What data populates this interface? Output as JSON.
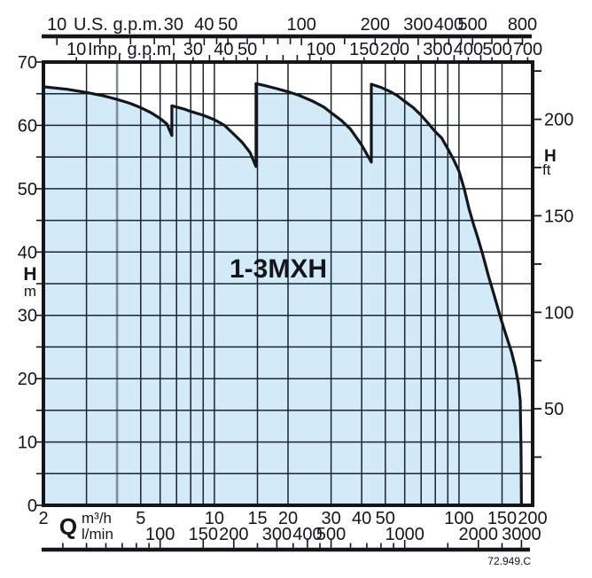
{
  "chart_data": {
    "type": "area",
    "title": "1-3MXH",
    "figure_code": "72.949.C",
    "x_axis": {
      "scale": "log",
      "label": "Q",
      "unit_primary": "m³/h",
      "unit_secondary": "l/min",
      "range_m3h": [
        2,
        200
      ],
      "ticks_m3h_labeled": [
        2,
        5,
        10,
        15,
        20,
        30,
        40,
        50,
        100,
        150,
        200
      ],
      "ticks_lmin_labeled": [
        100,
        150,
        200,
        300,
        400,
        500,
        1000,
        2000,
        3000
      ],
      "ticks_lmin_minor": [
        40,
        50,
        60,
        70,
        80,
        90,
        250,
        350,
        450,
        600,
        700,
        800,
        900,
        1500,
        2500
      ],
      "lmin_per_m3h": 16.6667
    },
    "x_top_us": {
      "label": "U.S. g.p.m.",
      "gpm_per_m3h": 4.40287,
      "ticks_labeled": [
        10,
        30,
        40,
        50,
        100,
        200,
        300,
        400,
        500,
        800
      ],
      "ticks_minor": [
        15,
        20,
        25,
        35,
        45,
        60,
        70,
        80,
        90,
        150,
        250,
        350,
        450,
        600,
        700
      ]
    },
    "x_top_imp": {
      "label": "Imp. g.p.m.",
      "gpm_per_m3h": 3.66615,
      "ticks_labeled": [
        10,
        30,
        40,
        50,
        100,
        150,
        200,
        300,
        400,
        500,
        700
      ],
      "ticks_minor": [
        15,
        20,
        25,
        35,
        45,
        60,
        70,
        80,
        90,
        250,
        350,
        450,
        600
      ]
    },
    "y_left": {
      "label": "H",
      "unit": "m",
      "range": [
        0,
        70
      ],
      "ticks_labeled": [
        0,
        10,
        20,
        30,
        40,
        50,
        60,
        70
      ],
      "minor_step": 5
    },
    "y_right": {
      "label": "H",
      "unit": "ft",
      "ticks_labeled": [
        50,
        100,
        150,
        200
      ],
      "tick_step_ft": 25,
      "max_tick_ft": 225,
      "ft_per_m": 3.28084
    },
    "grid": {
      "h_step_m": 5,
      "v_lines_m3h": [
        3,
        4,
        5,
        6,
        7,
        8,
        9,
        10,
        15,
        20,
        30,
        40,
        50,
        60,
        70,
        80,
        90,
        100,
        150
      ],
      "gray_v_line_m3h": 4
    },
    "envelope_QH": [
      [
        2,
        66.1
      ],
      [
        2.5,
        65.7
      ],
      [
        3,
        65.2
      ],
      [
        3.5,
        64.7
      ],
      [
        4,
        64.1
      ],
      [
        4.5,
        63.5
      ],
      [
        5,
        62.8
      ],
      [
        5.5,
        62.0
      ],
      [
        6,
        61.1
      ],
      [
        6.4,
        60.2
      ],
      [
        6.7,
        58.4
      ],
      [
        6.7,
        63.1
      ],
      [
        7.5,
        62.6
      ],
      [
        8,
        62.2
      ],
      [
        9,
        61.6
      ],
      [
        10,
        60.9
      ],
      [
        11,
        60.0
      ],
      [
        12,
        58.6
      ],
      [
        13,
        57.3
      ],
      [
        14,
        55.7
      ],
      [
        14.8,
        53.5
      ],
      [
        14.8,
        66.6
      ],
      [
        16,
        66.3
      ],
      [
        18,
        65.8
      ],
      [
        20,
        65.3
      ],
      [
        22,
        64.8
      ],
      [
        25,
        63.9
      ],
      [
        28,
        62.9
      ],
      [
        30,
        62.0
      ],
      [
        33,
        60.8
      ],
      [
        36,
        59.4
      ],
      [
        40,
        56.9
      ],
      [
        43.8,
        54.2
      ],
      [
        43.8,
        66.5
      ],
      [
        48,
        66.0
      ],
      [
        52,
        65.4
      ],
      [
        56,
        64.7
      ],
      [
        60,
        63.8
      ],
      [
        65,
        62.8
      ],
      [
        70,
        61.6
      ],
      [
        75,
        60.3
      ],
      [
        80,
        59.0
      ],
      [
        85,
        58.0
      ],
      [
        90,
        56.3
      ],
      [
        95,
        54.6
      ],
      [
        100,
        52.8
      ],
      [
        105,
        50.0
      ],
      [
        110,
        46.8
      ],
      [
        115,
        44.2
      ],
      [
        119,
        42.4
      ],
      [
        125,
        39.6
      ],
      [
        132,
        36.2
      ],
      [
        140,
        32.9
      ],
      [
        148,
        29.6
      ],
      [
        156,
        26.8
      ],
      [
        164,
        24.2
      ],
      [
        170,
        21.8
      ],
      [
        175,
        19.2
      ],
      [
        178,
        16.5
      ],
      [
        179.3,
        9.0
      ],
      [
        180,
        0
      ]
    ]
  },
  "colors": {
    "background": "#ffffff",
    "envelope_fill": "#d3ebf9",
    "ink": "#13171c",
    "grid": "#1c242e",
    "gray_line": "#7e8f96"
  }
}
